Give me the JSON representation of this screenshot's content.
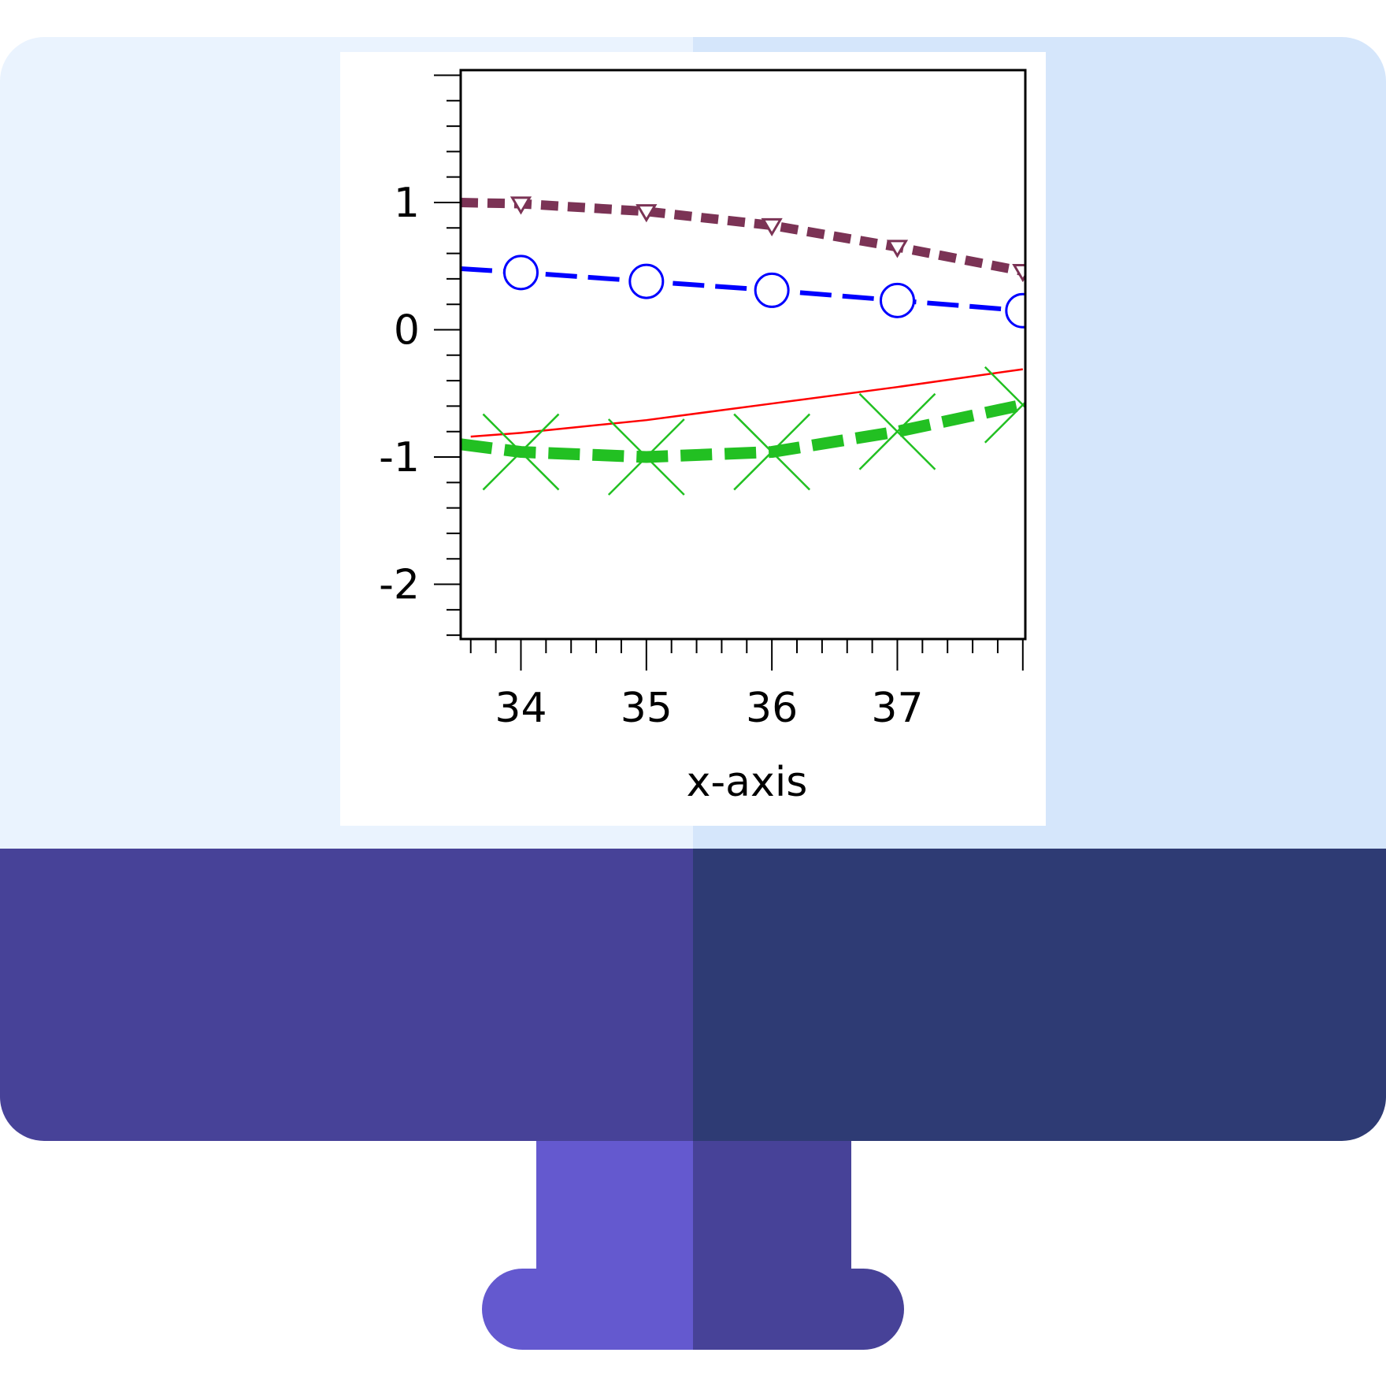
{
  "colors": {
    "screen_light": "#eaf3fe",
    "screen_dark": "#d5e6fb",
    "bezel_light": "#474298",
    "bezel_dark": "#2e3b74",
    "stand_light": "#6459cf",
    "stand_dark": "#474298"
  },
  "chart_data": {
    "type": "line",
    "title": "",
    "xlabel": "x-axis",
    "ylabel": "",
    "xlim": [
      33.52,
      38.02
    ],
    "ylim": [
      -2.43,
      2.04
    ],
    "x_ticks": [
      34,
      35,
      36,
      37
    ],
    "x_tick_labels": [
      "34",
      "35",
      "36",
      "37"
    ],
    "y_ticks": [
      1,
      0,
      -1,
      -2
    ],
    "y_tick_labels": [
      "1",
      "0",
      "-1",
      "-2"
    ],
    "grid": false,
    "legend": "none",
    "series": [
      {
        "color": "#7b3355",
        "line_style": "dotted-thick",
        "marker": "triangle-down",
        "x": [
          33.52,
          34,
          35,
          36,
          37,
          38
        ],
        "y": [
          1.0,
          0.99,
          0.93,
          0.82,
          0.65,
          0.46
        ]
      },
      {
        "color": "#0000ff",
        "line_style": "dashed",
        "marker": "circle",
        "x": [
          33.52,
          34,
          35,
          36,
          37,
          38
        ],
        "y": [
          0.48,
          0.45,
          0.38,
          0.31,
          0.23,
          0.15
        ]
      },
      {
        "color": "#ff0000",
        "line_style": "solid-thin",
        "marker": "none",
        "x": [
          33.6,
          34,
          35,
          36,
          37,
          38
        ],
        "y": [
          -0.84,
          -0.81,
          -0.71,
          -0.58,
          -0.45,
          -0.31
        ]
      },
      {
        "color": "#22c022",
        "line_style": "dashed-thick",
        "marker": "x",
        "x": [
          33.52,
          34,
          35,
          36,
          37,
          38
        ],
        "y": [
          -0.9,
          -0.96,
          -1.0,
          -0.96,
          -0.8,
          -0.59
        ]
      }
    ]
  }
}
